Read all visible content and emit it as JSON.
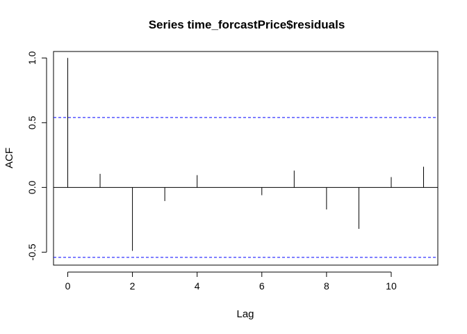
{
  "chart_data": {
    "type": "bar",
    "title": "Series  time_forcastPrice$residuals",
    "xlabel": "Lag",
    "ylabel": "ACF",
    "xlim": [
      -0.44,
      11.44
    ],
    "ylim": [
      -0.6,
      1.05
    ],
    "x_ticks": [
      0,
      2,
      4,
      6,
      8,
      10
    ],
    "y_ticks": [
      -0.5,
      0.0,
      0.5,
      1.0
    ],
    "x_tick_labels": [
      "0",
      "2",
      "4",
      "6",
      "8",
      "10"
    ],
    "y_tick_labels": [
      "-0.5",
      "0.0",
      "0.5",
      "1.0"
    ],
    "series": [
      {
        "lags": [
          0,
          1,
          2,
          3,
          4,
          5,
          6,
          7,
          8,
          9,
          10,
          11
        ],
        "values": [
          1.0,
          0.105,
          -0.49,
          -0.105,
          0.095,
          0.0,
          -0.06,
          0.13,
          -0.17,
          -0.32,
          0.08,
          0.16
        ]
      }
    ],
    "confidence_bounds": [
      0.54,
      -0.54
    ],
    "confidence_color": "#0000ff",
    "zero_line": true,
    "grid": false
  }
}
